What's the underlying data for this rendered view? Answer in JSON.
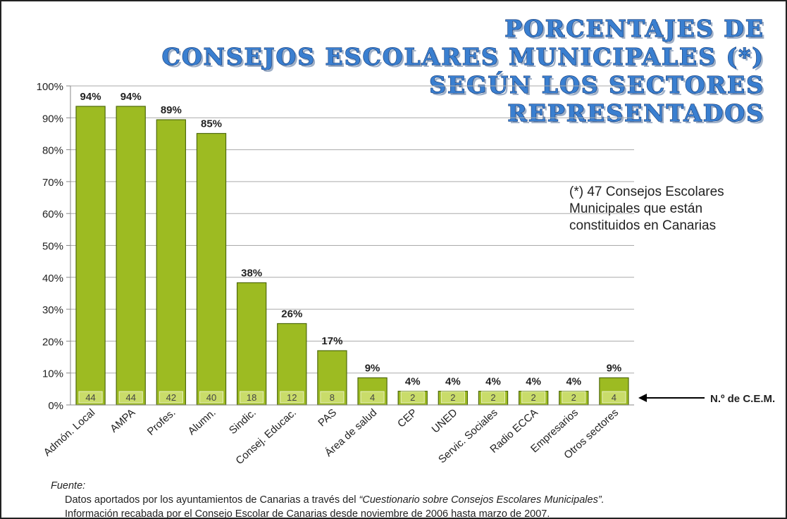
{
  "chart_data": {
    "type": "bar",
    "title": [
      "PORCENTAJES DE",
      "CONSEJOS ESCOLARES MUNICIPALES (*)",
      "SEGÚN LOS SECTORES",
      "REPRESENTADOS"
    ],
    "note": [
      "(*) 47 Consejos Escolares",
      "Municipales que están",
      "constituidos en Canarias"
    ],
    "categories": [
      "Admón. Local",
      "AMPA",
      "Profes.",
      "Alumn.",
      "Sindic.",
      "Consej. Educac.",
      "PAS",
      "Área de salud",
      "CEP",
      "UNED",
      "Servic. Sociales",
      "Radio ECCA",
      "Empresarios",
      "Otros sectores"
    ],
    "values": [
      93.6,
      93.6,
      89.4,
      85.1,
      38.3,
      25.5,
      17.0,
      8.5,
      4.3,
      4.3,
      4.3,
      4.3,
      4.3,
      8.5
    ],
    "value_labels": [
      "94%",
      "94%",
      "89%",
      "85%",
      "38%",
      "26%",
      "17%",
      "9%",
      "4%",
      "4%",
      "4%",
      "4%",
      "4%",
      "9%"
    ],
    "counts": [
      44,
      44,
      42,
      40,
      18,
      12,
      8,
      4,
      2,
      2,
      2,
      2,
      2,
      4
    ],
    "counts_label": "N.º de C.E.M.",
    "color": "#9dbb22",
    "ylim": [
      0,
      100
    ],
    "yticks": [
      {
        "value": 0,
        "label": "0%"
      },
      {
        "value": 10,
        "label": "10%"
      },
      {
        "value": 20,
        "label": "20%"
      },
      {
        "value": 30,
        "label": "30%"
      },
      {
        "value": 40,
        "label": "40%"
      },
      {
        "value": 50,
        "label": "50%"
      },
      {
        "value": 60,
        "label": "60%"
      },
      {
        "value": 70,
        "label": "70%"
      },
      {
        "value": 80,
        "label": "80%"
      },
      {
        "value": 90,
        "label": "90%"
      },
      {
        "value": 100,
        "label": "100%"
      }
    ],
    "grid": true,
    "source": {
      "label": "Fuente:",
      "line1": "Datos aportados por los ayuntamientos de Canarias a través del ",
      "line1_italic": "“Cuestionario sobre Consejos Escolares Municipales”.",
      "line2": "Información recabada por el Consejo Escolar de Canarias desde noviembre de 2006 hasta marzo de 2007."
    }
  }
}
